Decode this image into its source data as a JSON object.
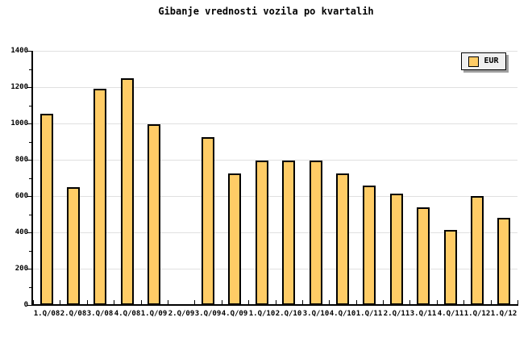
{
  "chart_data": {
    "type": "bar",
    "title": "Gibanje vrednosti vozila po kvartalih",
    "categories": [
      "1.Q/08",
      "2.Q/08",
      "3.Q/08",
      "4.Q/08",
      "1.Q/09",
      "2.Q/09",
      "3.Q/09",
      "4.Q/09",
      "1.Q/10",
      "2.Q/10",
      "3.Q/10",
      "4.Q/10",
      "1.Q/11",
      "2.Q/11",
      "3.Q/11",
      "4.Q/11",
      "1.Q/12",
      "1.Q/12"
    ],
    "series": [
      {
        "name": "EUR",
        "values": [
          1055,
          650,
          1190,
          1250,
          995,
          0,
          925,
          725,
          795,
          795,
          795,
          725,
          660,
          615,
          540,
          415,
          600,
          480
        ]
      }
    ],
    "xlabel": "",
    "ylabel": "",
    "ylim": [
      0,
      1400
    ],
    "ytick_major": 200,
    "ytick_minor": 100,
    "yticks": [
      0,
      200,
      400,
      600,
      800,
      1000,
      1200,
      1400
    ],
    "grid": true,
    "legend": [
      "EUR"
    ],
    "legend_position": "top-right"
  },
  "colors": {
    "bar_fill": "#FFCC66",
    "bar_border": "#000000",
    "grid": "#E0E0E0",
    "axis": "#000000",
    "background": "#FFFFFF",
    "text": "#000000",
    "legend_bg": "#EFEFEF",
    "legend_shadow": "#A0A0A0"
  }
}
